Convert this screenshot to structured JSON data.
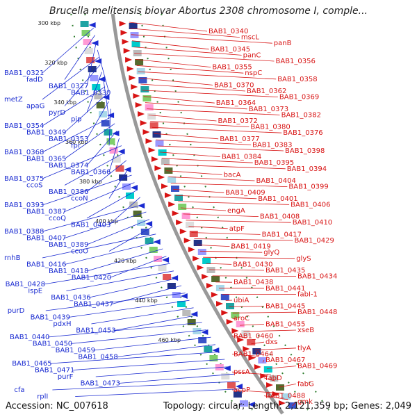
{
  "title": "Brucella melitensis biovar Abortus 2308 chromosome I, comple...",
  "footer": {
    "accession": "Accession: NC_007618",
    "topology": "Topology: circular; Length: 2,121,359 bp; Genes: 2,049"
  },
  "colors": {
    "left_genes": "#1a2bd1",
    "right_genes": "#d81414",
    "backbone": "#999999"
  },
  "ticks": [
    "300 kbp",
    "320 kbp",
    "340 kbp",
    "360 kbp",
    "380 kbp",
    "400 kbp",
    "420 kbp",
    "440 kbp",
    "460 kbp"
  ],
  "left_labels": [
    "BAB1_0321",
    "fadD",
    "BAB1_0327",
    "BAB1_0330",
    "metZ",
    "apaG",
    "pyrD",
    "pip",
    "BAB1_0354",
    "BAB1_0349",
    "BAB1_0353",
    "fpr",
    "BAB1_0368",
    "BAB1_0365",
    "BAB1_0374",
    "BAB1_0366",
    "BAB1_0375",
    "ccoS",
    "BAB1_0386",
    "ccoN",
    "BAB1_0393",
    "BAB1_0387",
    "ccoQ",
    "BAB1_0403",
    "BAB1_0388",
    "BAB1_0407",
    "BAB1_0389",
    "ccoO",
    "rnhB",
    "BAB1_0416",
    "BAB1_0418",
    "BAB1_0420",
    "BAB1_0428",
    "ispE",
    "BAB1_0436",
    "BAB1_0437",
    "purD",
    "BAB1_0439",
    "pdxH",
    "BAB1_0453",
    "BAB1_0440",
    "BAB1_0450",
    "BAB1_0459",
    "BAB1_0458",
    "BAB1_0465",
    "BAB1_0471",
    "purF",
    "BAB1_0473",
    "cfa",
    "rplI"
  ],
  "right_labels": [
    "BAB1_0340",
    "mscL",
    "panB",
    "BAB1_0345",
    "panC",
    "BAB1_0356",
    "BAB1_0355",
    "nspC",
    "BAB1_0358",
    "BAB1_0370",
    "BAB1_0362",
    "BAB1_0369",
    "BAB1_0364",
    "BAB1_0373",
    "BAB1_0382",
    "BAB1_0372",
    "BAB1_0380",
    "BAB1_0376",
    "BAB1_0377",
    "BAB1_0383",
    "BAB1_0398",
    "BAB1_0384",
    "BAB1_0395",
    "BAB1_0394",
    "bacA",
    "BAB1_0404",
    "BAB1_0399",
    "BAB1_0409",
    "BAB1_0401",
    "BAB1_0406",
    "engA",
    "BAB1_0408",
    "BAB1_0410",
    "atpF",
    "BAB1_0417",
    "BAB1_0429",
    "BAB1_0419",
    "glyQ",
    "glyS",
    "BAB1_0430",
    "BAB1_0435",
    "BAB1_0434",
    "BAB1_0438",
    "BAB1_0441",
    "fabI-1",
    "ubiA",
    "BAB1_0445",
    "BAB1_0448",
    "aroC",
    "BAB1_0455",
    "xseB",
    "BAB1_0460",
    "dxs",
    "tlyA",
    "BAB1_0464",
    "BAB1_0467",
    "BAB1_0469",
    "pssA",
    "fabD",
    "fabG",
    "acpP",
    "BAB1_0488",
    "gmk"
  ]
}
